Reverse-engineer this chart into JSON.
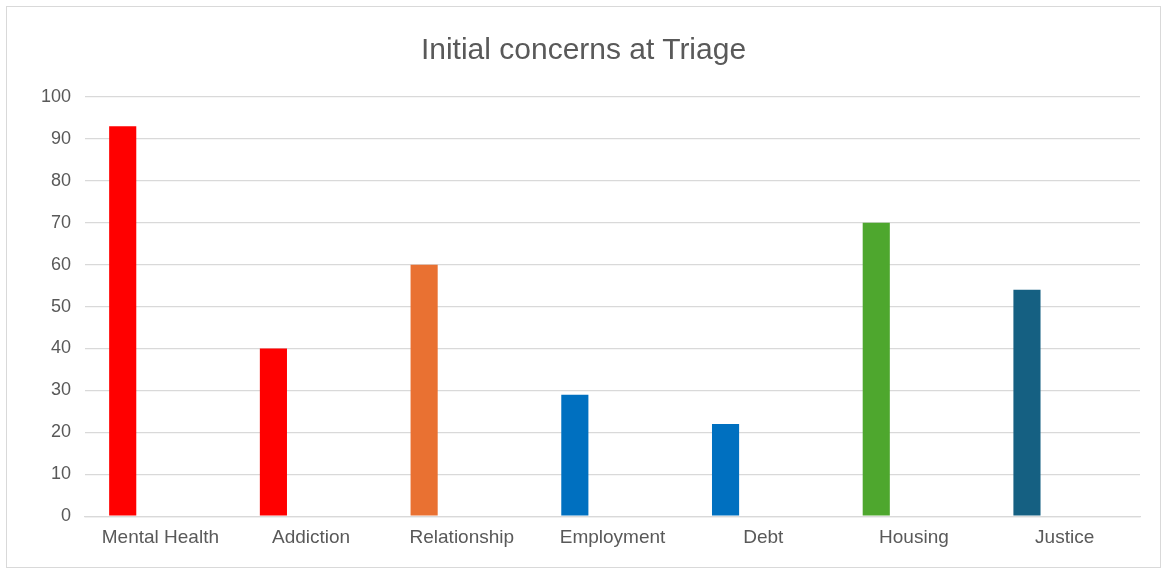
{
  "chart_data": {
    "type": "bar",
    "title": "Initial concerns at Triage",
    "categories": [
      "Mental Health",
      "Addiction",
      "Relationship",
      "Employment",
      "Debt",
      "Housing",
      "Justice"
    ],
    "values": [
      93,
      40,
      60,
      29,
      22,
      70,
      54
    ],
    "colors": [
      "#ff0000",
      "#ff0000",
      "#e97132",
      "#0070c0",
      "#0070c0",
      "#4ea72e",
      "#156082"
    ],
    "ylim": [
      0,
      100
    ],
    "yticks": [
      0,
      10,
      20,
      30,
      40,
      50,
      60,
      70,
      80,
      90,
      100
    ],
    "grid": "y",
    "legend": false
  }
}
